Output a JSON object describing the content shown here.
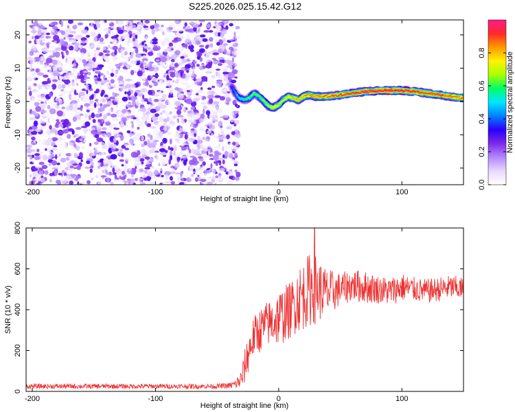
{
  "figure": {
    "title": "S225.2026.025.15.42.G12"
  },
  "chart_data": [
    {
      "type": "heatmap",
      "title": "S225.2026.025.15.42.G12",
      "xlabel": "Height of straight line (km)",
      "ylabel": "Frequency (Hz)",
      "xlim": [
        -205,
        150
      ],
      "ylim": [
        -25,
        24.5
      ],
      "xticks": [
        -200,
        -100,
        0,
        100
      ],
      "yticks": [
        -20,
        -10,
        0,
        10,
        20
      ],
      "colorbar": {
        "label": "Normalized spectral amplitude",
        "range": [
          0,
          1
        ],
        "ticks": [
          0,
          0.2,
          0.4,
          0.6,
          0.8
        ],
        "tick_labels": [
          "0.0",
          "0.2",
          "0.4",
          "0.6",
          "0.8"
        ],
        "colormap": [
          "#ffffff",
          "#e8d8ff",
          "#b388ff",
          "#7c2ae8",
          "#2a00ff",
          "#0080ff",
          "#00e6ff",
          "#00ff66",
          "#a8ff00",
          "#fff200",
          "#ff9a00",
          "#ff2a2a",
          "#ff1a8c"
        ]
      },
      "noise_region": {
        "x": [
          -205,
          -35
        ],
        "y": [
          -25,
          24.5
        ],
        "amplitude_range": [
          0.0,
          0.3
        ]
      },
      "ridge": {
        "x": [
          -38,
          -35,
          -32,
          -28,
          -24,
          -20,
          -16,
          -12,
          -8,
          -4,
          0,
          4,
          8,
          12,
          16,
          20,
          25,
          30,
          40,
          50,
          60,
          70,
          80,
          90,
          100,
          110,
          120,
          130,
          140,
          150
        ],
        "frequency": [
          4.5,
          2.5,
          1.0,
          0.5,
          1.0,
          2.5,
          1.5,
          0.2,
          -1.5,
          -1.8,
          -1.0,
          0.5,
          1.5,
          1.0,
          0.5,
          1.5,
          2.0,
          1.5,
          1.5,
          2.0,
          2.5,
          3.0,
          3.2,
          3.3,
          3.3,
          3.0,
          2.5,
          2.0,
          1.5,
          1.0
        ],
        "amplitude": [
          0.35,
          0.45,
          0.5,
          0.55,
          0.6,
          0.62,
          0.6,
          0.65,
          0.7,
          0.75,
          0.72,
          0.7,
          0.75,
          0.8,
          0.8,
          0.82,
          0.85,
          0.85,
          0.88,
          0.9,
          0.92,
          0.95,
          0.95,
          0.95,
          0.95,
          0.93,
          0.9,
          0.9,
          0.88,
          0.85
        ]
      }
    },
    {
      "type": "line",
      "xlabel": "Height of straight line (km)",
      "ylabel": "SNR (10 * v/v)",
      "xlim": [
        -205,
        150
      ],
      "ylim": [
        0,
        800
      ],
      "xticks": [
        -200,
        -100,
        0,
        100
      ],
      "yticks": [
        0,
        200,
        400,
        600,
        800
      ],
      "line_color": "#ee3333",
      "series": [
        {
          "name": "SNR",
          "x": [
            -205,
            -190,
            -170,
            -150,
            -130,
            -110,
            -90,
            -70,
            -50,
            -40,
            -35,
            -30,
            -28,
            -25,
            -22,
            -20,
            -15,
            -10,
            -5,
            0,
            5,
            10,
            15,
            20,
            25,
            28,
            30,
            35,
            40,
            50,
            60,
            70,
            80,
            90,
            100,
            110,
            120,
            130,
            140,
            150
          ],
          "center": [
            25,
            25,
            25,
            25,
            25,
            25,
            25,
            25,
            25,
            28,
            35,
            60,
            110,
            180,
            240,
            270,
            300,
            330,
            340,
            360,
            380,
            400,
            450,
            470,
            500,
            520,
            500,
            490,
            480,
            500,
            520,
            510,
            500,
            490,
            510,
            500,
            490,
            500,
            510,
            500
          ],
          "spread": [
            12,
            12,
            12,
            12,
            12,
            12,
            12,
            12,
            12,
            15,
            25,
            50,
            80,
            100,
            100,
            100,
            110,
            110,
            120,
            140,
            140,
            140,
            160,
            170,
            180,
            200,
            170,
            140,
            120,
            80,
            80,
            80,
            70,
            70,
            70,
            60,
            60,
            60,
            60,
            60
          ],
          "peak": {
            "x": 29,
            "y": 800
          }
        }
      ]
    }
  ]
}
